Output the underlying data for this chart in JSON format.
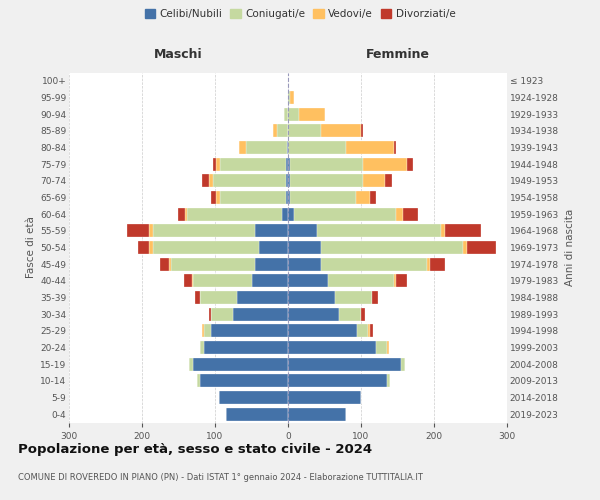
{
  "age_groups": [
    "0-4",
    "5-9",
    "10-14",
    "15-19",
    "20-24",
    "25-29",
    "30-34",
    "35-39",
    "40-44",
    "45-49",
    "50-54",
    "55-59",
    "60-64",
    "65-69",
    "70-74",
    "75-79",
    "80-84",
    "85-89",
    "90-94",
    "95-99",
    "100+"
  ],
  "birth_years": [
    "2019-2023",
    "2014-2018",
    "2009-2013",
    "2004-2008",
    "1999-2003",
    "1994-1998",
    "1989-1993",
    "1984-1988",
    "1979-1983",
    "1974-1978",
    "1969-1973",
    "1964-1968",
    "1959-1963",
    "1954-1958",
    "1949-1953",
    "1944-1948",
    "1939-1943",
    "1934-1938",
    "1929-1933",
    "1924-1928",
    "≤ 1923"
  ],
  "male": {
    "celibi": [
      85,
      95,
      120,
      130,
      115,
      105,
      75,
      70,
      50,
      45,
      40,
      45,
      8,
      3,
      3,
      3,
      2,
      0,
      0,
      0,
      0
    ],
    "coniugati": [
      0,
      0,
      5,
      5,
      5,
      10,
      30,
      50,
      80,
      115,
      145,
      140,
      130,
      90,
      100,
      90,
      55,
      15,
      5,
      0,
      0
    ],
    "vedovi": [
      0,
      0,
      0,
      0,
      0,
      3,
      0,
      0,
      2,
      3,
      5,
      5,
      3,
      5,
      5,
      5,
      10,
      5,
      0,
      0,
      0
    ],
    "divorziati": [
      0,
      0,
      0,
      0,
      0,
      0,
      3,
      8,
      10,
      12,
      15,
      30,
      10,
      8,
      10,
      5,
      0,
      0,
      0,
      0,
      0
    ]
  },
  "female": {
    "nubili": [
      80,
      100,
      135,
      155,
      120,
      95,
      70,
      65,
      55,
      45,
      45,
      40,
      8,
      3,
      3,
      3,
      0,
      0,
      0,
      0,
      0
    ],
    "coniugate": [
      0,
      0,
      5,
      5,
      15,
      15,
      30,
      50,
      90,
      145,
      195,
      170,
      140,
      90,
      100,
      100,
      80,
      45,
      15,
      3,
      0
    ],
    "vedove": [
      0,
      0,
      0,
      0,
      3,
      3,
      0,
      0,
      3,
      5,
      5,
      5,
      10,
      20,
      30,
      60,
      65,
      55,
      35,
      5,
      0
    ],
    "divorziate": [
      0,
      0,
      0,
      0,
      0,
      3,
      5,
      8,
      15,
      20,
      40,
      50,
      20,
      8,
      10,
      8,
      3,
      3,
      0,
      0,
      0
    ]
  },
  "colors": {
    "celibi": "#4472a8",
    "coniugati": "#c5d9a0",
    "vedovi": "#ffc060",
    "divorziati": "#c0392b"
  },
  "title": "Popolazione per età, sesso e stato civile - 2024",
  "subtitle": "COMUNE DI ROVEREDO IN PIANO (PN) - Dati ISTAT 1° gennaio 2024 - Elaborazione TUTTITALIA.IT",
  "xlim": 300,
  "ylabel_left": "Fasce di età",
  "ylabel_right": "Anni di nascita",
  "xlabel_left": "Maschi",
  "xlabel_right": "Femmine",
  "bg_color": "#f0f0f0",
  "plot_bg_color": "#ffffff"
}
